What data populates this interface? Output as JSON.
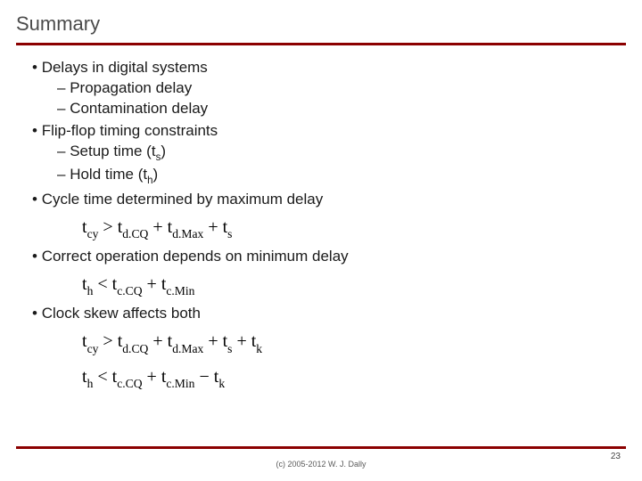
{
  "title": "Summary",
  "bullets": {
    "b1": "Delays in digital systems",
    "b1a": "Propagation delay",
    "b1b": "Contamination delay",
    "b2": "Flip-flop timing constraints",
    "b2a_pre": "Setup time (t",
    "b2a_sub": "s",
    "b2a_post": ")",
    "b2b_pre": "Hold time (t",
    "b2b_sub": "h",
    "b2b_post": ")",
    "b3": "Cycle time determined by maximum delay",
    "b4": "Correct operation depends on minimum delay",
    "b5": "Clock skew affects both"
  },
  "equations": {
    "eq1": {
      "t1": "t",
      "s1": "cy",
      "op1": " > ",
      "t2": "t",
      "s2": "d.CQ",
      "p1": " + ",
      "t3": "t",
      "s3": "d.Max",
      "p2": " + ",
      "t4": "t",
      "s4": "s"
    },
    "eq2": {
      "t1": "t",
      "s1": "h",
      "op1": " < ",
      "t2": "t",
      "s2": "c.CQ",
      "p1": " + ",
      "t3": "t",
      "s3": "c.Min"
    },
    "eq3": {
      "t1": "t",
      "s1": "cy",
      "op1": " > ",
      "t2": "t",
      "s2": "d.CQ",
      "p1": " + ",
      "t3": "t",
      "s3": "d.Max",
      "p2": " + ",
      "t4": "t",
      "s4": "s",
      "p3": " + ",
      "t5": "t",
      "s5": "k"
    },
    "eq4": {
      "t1": "t",
      "s1": "h",
      "op1": " < ",
      "t2": "t",
      "s2": "c.CQ",
      "p1": " + ",
      "t3": "t",
      "s3": "c.Min",
      "p2": " − ",
      "t4": "t",
      "s4": "k"
    }
  },
  "footer": {
    "copyright": "(c) 2005-2012 W. J. Dally",
    "page": "23"
  },
  "colors": {
    "rule": "#8b0000",
    "title_text": "#4b4b4b",
    "body_text": "#1a1a1a",
    "bg": "#ffffff"
  }
}
